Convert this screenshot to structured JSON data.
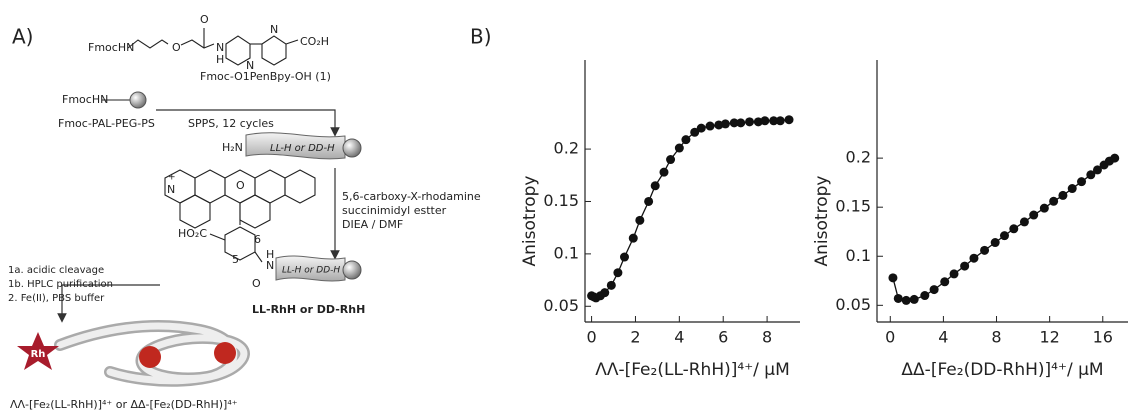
{
  "panel_a": {
    "label": "A)",
    "monomer_amine": "FmocHN",
    "ether_o": "O",
    "carbonyl_o": "O",
    "amide_n": "N",
    "amide_h": "H",
    "pyridine_n1": "N",
    "pyridine_n2": "N",
    "acid": "CO₂H",
    "monomer_name": "Fmoc-O1PenBpy-OH (1)",
    "resin_amine": "FmocHN",
    "resin_name": "Fmoc-PAL-PEG-PS",
    "step1": "SPPS, 12 cycles",
    "n_terminus": "H₂N",
    "peptide1": "LL-H or DD-H",
    "reagent_line1": "5,6-carboxy-X-rhodamine",
    "reagent_line2": "succinimidyl estter",
    "reagent_line3": "DIEA / DMF",
    "rhodamine_n": "N",
    "rhodamine_plus": "+",
    "rhodamine_o": "O",
    "rhodamine_acid": "HO₂C",
    "position5": "5",
    "position6": "6",
    "linker_h": "H",
    "linker_n": "N",
    "linker_o": "O",
    "peptide2": "LL-H or DD-H",
    "product": "LL-RhH or DD-RhH",
    "step_1a": "1a. acidic cleavage",
    "step_1b": "1b. HPLC purification",
    "step_2": "2.    Fe(II), PBS buffer",
    "fluorophore": "Rh",
    "final_product": "ΛΛ-[Fe₂(LL-RhH)]⁴⁺ or ΔΔ-[Fe₂(DD-RhH)]⁴⁺"
  },
  "panel_b_label": "B)",
  "chart_data": [
    {
      "type": "scatter",
      "fit_line": true,
      "color": "#111111",
      "x_label": "ΛΛ-[Fe₂(LL-RhH)]⁴⁺/ μM",
      "y_label": "Anisotropy",
      "x": [
        0,
        0.1,
        0.2,
        0.4,
        0.6,
        0.9,
        1.2,
        1.5,
        1.9,
        2.2,
        2.6,
        2.9,
        3.3,
        3.6,
        4.0,
        4.3,
        4.7,
        5.0,
        5.4,
        5.8,
        6.1,
        6.5,
        6.8,
        7.2,
        7.6,
        7.9,
        8.3,
        8.6,
        9.0
      ],
      "values": [
        0.06,
        0.059,
        0.058,
        0.06,
        0.063,
        0.07,
        0.082,
        0.097,
        0.115,
        0.132,
        0.15,
        0.165,
        0.178,
        0.19,
        0.201,
        0.209,
        0.216,
        0.22,
        0.222,
        0.223,
        0.224,
        0.225,
        0.225,
        0.226,
        0.226,
        0.227,
        0.227,
        0.227,
        0.228
      ],
      "xlim": [
        -0.3,
        9.5
      ],
      "ylim": [
        0.035,
        0.285
      ],
      "xticks": [
        0,
        2,
        4,
        6,
        8
      ],
      "yticks": [
        0.05,
        0.1,
        0.15,
        0.2
      ]
    },
    {
      "type": "scatter",
      "fit_line": true,
      "color": "#111111",
      "x_label": "ΔΔ-[Fe₂(DD-RhH)]⁴⁺/ μM",
      "y_label": "Anisotropy",
      "x": [
        0.2,
        0.6,
        1.2,
        1.8,
        2.6,
        3.3,
        4.1,
        4.8,
        5.6,
        6.3,
        7.1,
        7.9,
        8.6,
        9.3,
        10.1,
        10.8,
        11.6,
        12.3,
        13.0,
        13.7,
        14.4,
        15.1,
        15.6,
        16.1,
        16.5,
        16.9
      ],
      "values": [
        0.078,
        0.057,
        0.055,
        0.056,
        0.06,
        0.066,
        0.074,
        0.082,
        0.09,
        0.098,
        0.106,
        0.114,
        0.121,
        0.128,
        0.135,
        0.142,
        0.149,
        0.156,
        0.162,
        0.169,
        0.176,
        0.183,
        0.188,
        0.193,
        0.197,
        0.2
      ],
      "xlim": [
        -1,
        17.9
      ],
      "ylim": [
        0.033,
        0.3
      ],
      "xticks": [
        0,
        4,
        8,
        12,
        16
      ],
      "yticks": [
        0.05,
        0.1,
        0.15,
        0.2
      ]
    }
  ]
}
